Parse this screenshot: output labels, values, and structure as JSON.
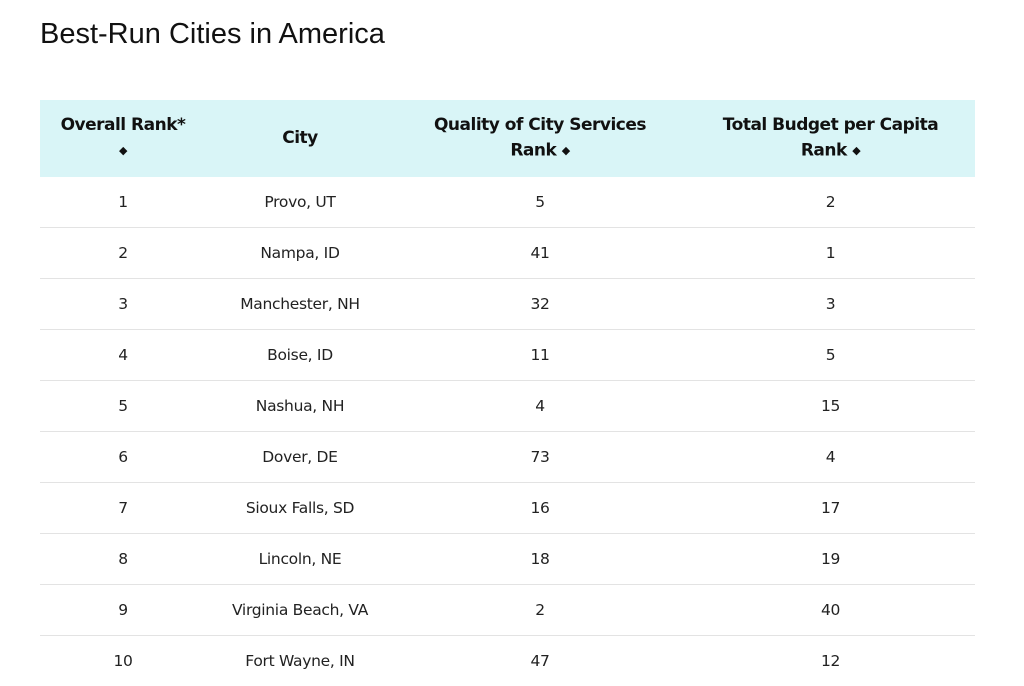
{
  "page": {
    "title": "Best-Run Cities in America"
  },
  "table": {
    "columns": [
      {
        "label_line1": "Overall Rank*",
        "label_line2": "",
        "sortable": true
      },
      {
        "label_line1": "City",
        "label_line2": "",
        "sortable": false
      },
      {
        "label_line1": "Quality of City Services",
        "label_line2": "Rank",
        "sortable": true
      },
      {
        "label_line1": "Total Budget per Capita",
        "label_line2": "Rank",
        "sortable": true
      }
    ],
    "sort_icon": "◆",
    "rows": [
      {
        "rank": "1",
        "city": "Provo, UT",
        "services": "5",
        "budget": "2"
      },
      {
        "rank": "2",
        "city": "Nampa, ID",
        "services": "41",
        "budget": "1"
      },
      {
        "rank": "3",
        "city": "Manchester, NH",
        "services": "32",
        "budget": "3"
      },
      {
        "rank": "4",
        "city": "Boise, ID",
        "services": "11",
        "budget": "5"
      },
      {
        "rank": "5",
        "city": "Nashua, NH",
        "services": "4",
        "budget": "15"
      },
      {
        "rank": "6",
        "city": "Dover, DE",
        "services": "73",
        "budget": "4"
      },
      {
        "rank": "7",
        "city": "Sioux Falls, SD",
        "services": "16",
        "budget": "17"
      },
      {
        "rank": "8",
        "city": "Lincoln, NE",
        "services": "18",
        "budget": "19"
      },
      {
        "rank": "9",
        "city": "Virginia Beach, VA",
        "services": "2",
        "budget": "40"
      },
      {
        "rank": "10",
        "city": "Fort Wayne, IN",
        "services": "47",
        "budget": "12"
      }
    ]
  },
  "colors": {
    "header_bg": "#d9f5f7",
    "row_divider": "#e3e3e3"
  }
}
